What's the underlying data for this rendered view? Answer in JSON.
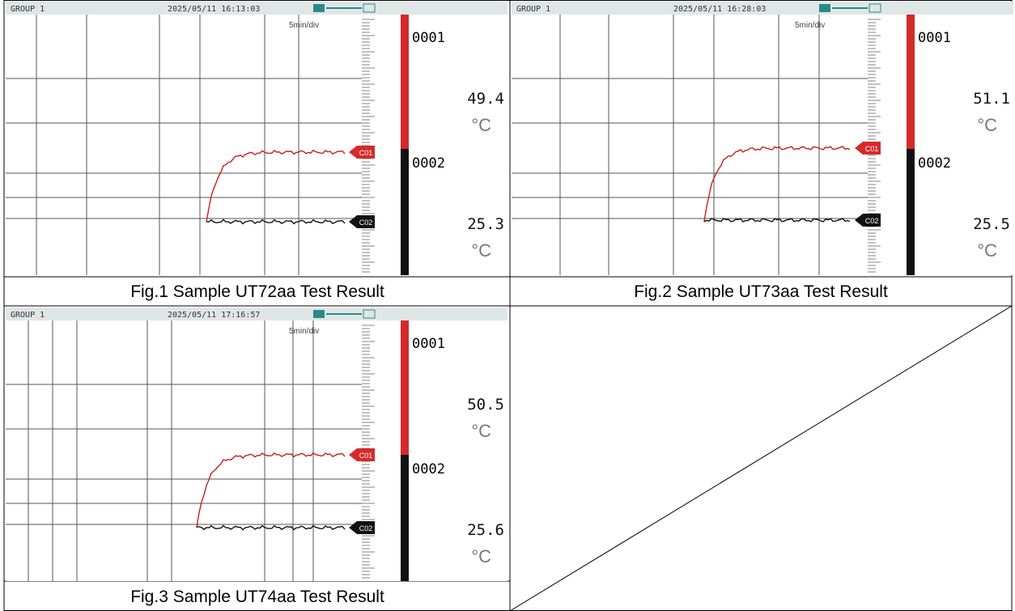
{
  "figures": [
    {
      "caption": "Fig.1 Sample UT72aa Test Result",
      "group": "GROUP 1",
      "timestamp": "2025/05/11 16:13:03",
      "div": "5min/div",
      "channels": [
        {
          "id": "0001",
          "value": "49.4",
          "unit": "°C",
          "tag": "C01"
        },
        {
          "id": "0002",
          "value": "25.3",
          "unit": "°C",
          "tag": "C02"
        }
      ]
    },
    {
      "caption": "Fig.2 Sample UT73aa Test Result",
      "group": "GROUP 1",
      "timestamp": "2025/05/11 16:28:03",
      "div": "5min/div",
      "channels": [
        {
          "id": "0001",
          "value": "51.1",
          "unit": "°C",
          "tag": "C01"
        },
        {
          "id": "0002",
          "value": "25.5",
          "unit": "°C",
          "tag": "C02"
        }
      ]
    },
    {
      "caption": "Fig.3 Sample UT74aa Test Result",
      "group": "GROUP 1",
      "timestamp": "2025/05/11 17:16:57",
      "div": "5min/div",
      "channels": [
        {
          "id": "0001",
          "value": "50.5",
          "unit": "°C",
          "tag": "C01"
        },
        {
          "id": "0002",
          "value": "25.6",
          "unit": "°C",
          "tag": "C02"
        }
      ]
    }
  ]
}
